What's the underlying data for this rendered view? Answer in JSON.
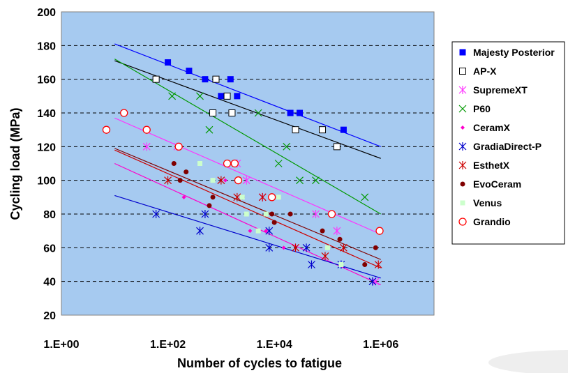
{
  "chart_data": {
    "type": "scatter",
    "xlabel": "Number of cycles to fatigue",
    "ylabel": "Cycling load (MPa)",
    "x_scale": "log",
    "xlim": [
      1,
      10000000
    ],
    "ylim": [
      20,
      200
    ],
    "x_ticks": [
      {
        "value": 1,
        "label": "1.E+00"
      },
      {
        "value": 100,
        "label": "1.E+02"
      },
      {
        "value": 10000,
        "label": "1.E+04"
      },
      {
        "value": 1000000,
        "label": "1.E+06"
      }
    ],
    "y_ticks": [
      20,
      40,
      60,
      80,
      100,
      120,
      140,
      160,
      180,
      200
    ],
    "grid": "horizontal-dashed",
    "plot_background": "#a6caf0",
    "legend_position": "right",
    "series": [
      {
        "name": "Majesty Posterior",
        "marker": "square-filled",
        "color": "#0000ff",
        "points": [
          [
            100,
            170
          ],
          [
            250,
            165
          ],
          [
            500,
            160
          ],
          [
            1000,
            150
          ],
          [
            1500,
            160
          ],
          [
            2000,
            150
          ],
          [
            20000,
            140
          ],
          [
            30000,
            140
          ],
          [
            200000,
            130
          ]
        ],
        "trend": [
          [
            10,
            181
          ],
          [
            1000000,
            120
          ]
        ]
      },
      {
        "name": "AP-X",
        "marker": "square-open",
        "color": "#000000",
        "points": [
          [
            60,
            160
          ],
          [
            800,
            160
          ],
          [
            700,
            140
          ],
          [
            1300,
            150
          ],
          [
            1600,
            140
          ],
          [
            25000,
            130
          ],
          [
            80000,
            130
          ],
          [
            150000,
            120
          ]
        ],
        "trend": [
          [
            10,
            171
          ],
          [
            1000000,
            113
          ]
        ]
      },
      {
        "name": "SupremeXT",
        "marker": "asterisk",
        "color": "#ff33ff",
        "points": [
          [
            40,
            120
          ],
          [
            150,
            120
          ],
          [
            2000,
            110
          ],
          [
            3000,
            100
          ],
          [
            6000,
            90
          ],
          [
            60000,
            80
          ],
          [
            150000,
            70
          ],
          [
            800000,
            40
          ]
        ],
        "trend": [
          [
            10,
            137
          ],
          [
            1000000,
            68
          ]
        ]
      },
      {
        "name": "P60",
        "marker": "x",
        "color": "#009900",
        "points": [
          [
            120,
            150
          ],
          [
            400,
            150
          ],
          [
            600,
            130
          ],
          [
            5000,
            140
          ],
          [
            12000,
            110
          ],
          [
            17000,
            120
          ],
          [
            30000,
            100
          ],
          [
            60000,
            100
          ],
          [
            500000,
            90
          ]
        ],
        "trend": [
          [
            10,
            172
          ],
          [
            1000000,
            80
          ]
        ]
      },
      {
        "name": "CeramX",
        "marker": "diamond-small",
        "color": "#ff00cc",
        "points": [
          [
            200,
            90
          ],
          [
            1200,
            100
          ],
          [
            3500,
            70
          ],
          [
            7000,
            70
          ],
          [
            15000,
            60
          ]
        ],
        "trend": [
          [
            10,
            110
          ],
          [
            1000000,
            38
          ]
        ]
      },
      {
        "name": "GradiaDirect-P",
        "marker": "asterisk",
        "color": "#0000cc",
        "points": [
          [
            60,
            80
          ],
          [
            400,
            70
          ],
          [
            500,
            80
          ],
          [
            8000,
            60
          ],
          [
            8000,
            70
          ],
          [
            40000,
            60
          ],
          [
            50000,
            50
          ],
          [
            180000,
            50
          ],
          [
            700000,
            40
          ]
        ],
        "trend": [
          [
            10,
            91
          ],
          [
            1000000,
            42
          ]
        ]
      },
      {
        "name": "EsthetX",
        "marker": "asterisk",
        "color": "#cc0000",
        "points": [
          [
            100,
            100
          ],
          [
            1000,
            100
          ],
          [
            2000,
            90
          ],
          [
            6000,
            90
          ],
          [
            25000,
            60
          ],
          [
            90000,
            55
          ],
          [
            200000,
            60
          ],
          [
            900000,
            50
          ]
        ],
        "trend": [
          [
            10,
            118
          ],
          [
            1000000,
            48
          ]
        ]
      },
      {
        "name": "EvoCeram",
        "marker": "circle-filled",
        "color": "#800000",
        "points": [
          [
            130,
            110
          ],
          [
            170,
            100
          ],
          [
            220,
            105
          ],
          [
            600,
            85
          ],
          [
            700,
            90
          ],
          [
            2500,
            90
          ],
          [
            9000,
            80
          ],
          [
            10000,
            75
          ],
          [
            20000,
            80
          ],
          [
            80000,
            70
          ],
          [
            170000,
            65
          ],
          [
            500000,
            50
          ],
          [
            800000,
            60
          ]
        ],
        "trend": [
          [
            10,
            119
          ],
          [
            1000000,
            53
          ]
        ]
      },
      {
        "name": "Venus",
        "marker": "square-small",
        "color": "#ccffcc",
        "points": [
          [
            400,
            110
          ],
          [
            700,
            100
          ],
          [
            2500,
            90
          ],
          [
            3000,
            80
          ],
          [
            5000,
            70
          ],
          [
            7000,
            80
          ],
          [
            12000,
            90
          ],
          [
            100000,
            60
          ],
          [
            180000,
            50
          ]
        ],
        "trend": []
      },
      {
        "name": "Grandio",
        "marker": "circle-open",
        "color": "#ff0000",
        "points": [
          [
            7,
            130
          ],
          [
            15,
            140
          ],
          [
            40,
            130
          ],
          [
            160,
            120
          ],
          [
            1300,
            110
          ],
          [
            1800,
            110
          ],
          [
            2100,
            100
          ],
          [
            9000,
            90
          ],
          [
            120000,
            80
          ],
          [
            950000,
            70
          ]
        ],
        "trend": []
      }
    ]
  }
}
